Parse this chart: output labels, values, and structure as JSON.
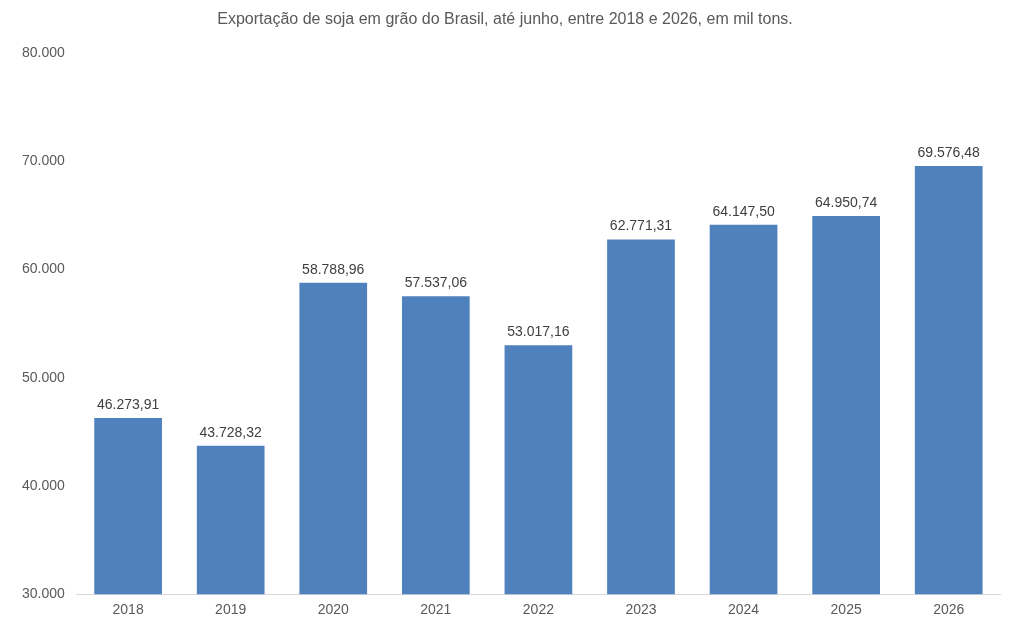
{
  "chart_data": {
    "type": "bar",
    "title": "Exportação de soja em grão do Brasil, até junho, entre 2018 e 2026, em mil tons.",
    "categories": [
      "2018",
      "2019",
      "2020",
      "2021",
      "2022",
      "2023",
      "2024",
      "2025",
      "2026"
    ],
    "values": [
      46273.91,
      43728.32,
      58788.96,
      57537.06,
      53017.16,
      62771.31,
      64147.5,
      64950.74,
      69576.48
    ],
    "value_labels": [
      "46.273,91",
      "43.728,32",
      "58.788,96",
      "57.537,06",
      "53.017,16",
      "62.771,31",
      "64.147,50",
      "64.950,74",
      "69.576,48"
    ],
    "color": "#4f81bd",
    "ylim": [
      30000,
      80000
    ],
    "yticks": [
      {
        "value": 30000,
        "label": "30.000"
      },
      {
        "value": 40000,
        "label": "40.000"
      },
      {
        "value": 50000,
        "label": "50.000"
      },
      {
        "value": 60000,
        "label": "60.000"
      },
      {
        "value": 70000,
        "label": "70.000"
      },
      {
        "value": 80000,
        "label": "80.000"
      }
    ],
    "grid": false,
    "legend": false
  }
}
